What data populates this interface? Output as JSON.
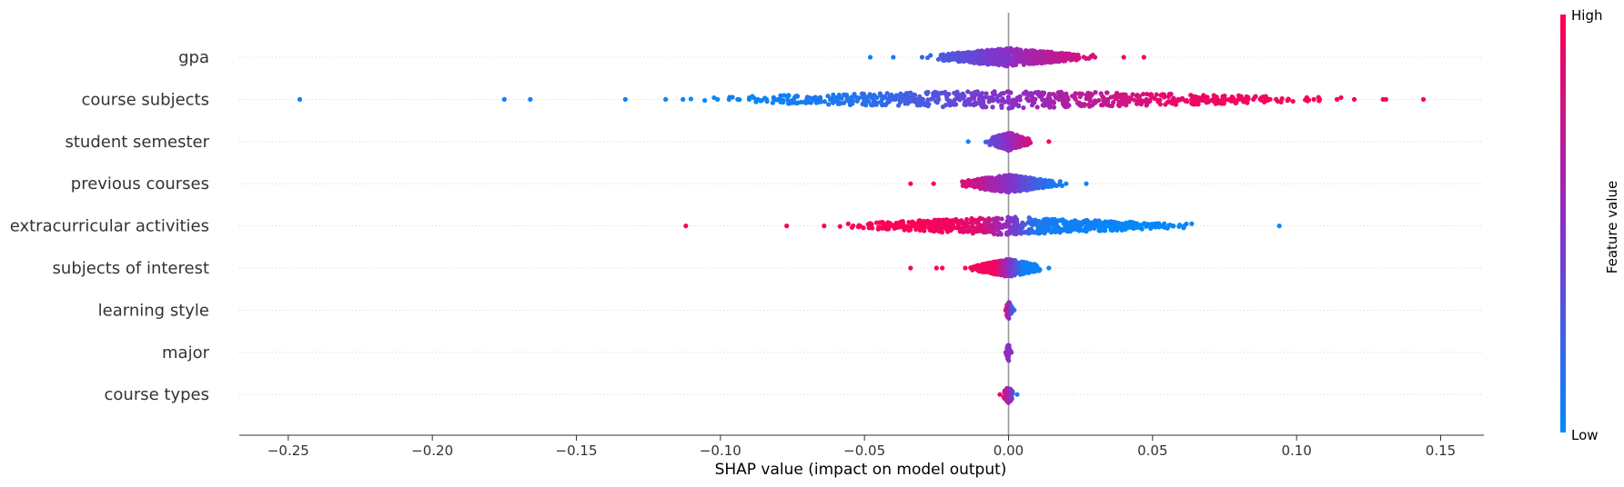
{
  "chart_data": {
    "type": "scatter",
    "subtype": "shap-beeswarm-summary",
    "xlabel": "SHAP value (impact on model output)",
    "xlim": [
      -0.267,
      0.165
    ],
    "xticks": [
      -0.25,
      -0.2,
      -0.15,
      -0.1,
      -0.05,
      0.0,
      0.05,
      0.1,
      0.15
    ],
    "xtick_labels": [
      "−0.25",
      "−0.20",
      "−0.15",
      "−0.10",
      "−0.05",
      "0.00",
      "0.05",
      "0.10",
      "0.15"
    ],
    "features": [
      "gpa",
      "course subjects",
      "student semester",
      "previous courses",
      "extracurricular activities",
      "subjects of interest",
      "learning style",
      "major",
      "course types"
    ],
    "colorbar": {
      "label": "Feature value",
      "high_label": "High",
      "low_label": "Low",
      "high_color": "#ff0052",
      "mid_color": "#8a2fc8",
      "low_color": "#008bfb"
    },
    "series": [
      {
        "feature": "gpa",
        "range": [
          -0.048,
          0.047
        ],
        "trend": "positive",
        "sample_points": [
          {
            "x": -0.048,
            "v": 0.05
          },
          {
            "x": -0.04,
            "v": 0.1
          },
          {
            "x": -0.03,
            "v": 0.2
          },
          {
            "x": -0.02,
            "v": 0.3
          },
          {
            "x": -0.01,
            "v": 0.4
          },
          {
            "x": 0.0,
            "v": 0.5
          },
          {
            "x": 0.01,
            "v": 0.65
          },
          {
            "x": 0.02,
            "v": 0.75
          },
          {
            "x": 0.03,
            "v": 0.85
          },
          {
            "x": 0.04,
            "v": 0.9
          },
          {
            "x": 0.047,
            "v": 0.95
          }
        ]
      },
      {
        "feature": "course subjects",
        "range": [
          -0.246,
          0.144
        ],
        "trend": "positive",
        "sample_points": [
          {
            "x": -0.246,
            "v": 0.02
          },
          {
            "x": -0.175,
            "v": 0.05
          },
          {
            "x": -0.166,
            "v": 0.05
          },
          {
            "x": -0.133,
            "v": 0.05
          },
          {
            "x": -0.119,
            "v": 0.05
          },
          {
            "x": -0.113,
            "v": 0.05
          },
          {
            "x": -0.101,
            "v": 0.05
          },
          {
            "x": -0.097,
            "v": 0.05
          },
          {
            "x": -0.094,
            "v": 0.05
          },
          {
            "x": -0.09,
            "v": 0.05
          },
          {
            "x": -0.087,
            "v": 0.05
          },
          {
            "x": -0.084,
            "v": 0.05
          },
          {
            "x": -0.08,
            "v": 0.05
          },
          {
            "x": -0.07,
            "v": 0.08
          },
          {
            "x": -0.06,
            "v": 0.1
          },
          {
            "x": -0.04,
            "v": 0.2
          },
          {
            "x": 0.0,
            "v": 0.5
          },
          {
            "x": 0.04,
            "v": 0.8
          },
          {
            "x": 0.06,
            "v": 0.92
          },
          {
            "x": 0.078,
            "v": 0.95
          },
          {
            "x": 0.085,
            "v": 0.95
          },
          {
            "x": 0.106,
            "v": 0.98
          },
          {
            "x": 0.108,
            "v": 0.98
          },
          {
            "x": 0.114,
            "v": 0.98
          },
          {
            "x": 0.12,
            "v": 0.98
          },
          {
            "x": 0.13,
            "v": 0.98
          },
          {
            "x": 0.131,
            "v": 0.98
          },
          {
            "x": 0.144,
            "v": 0.98
          }
        ]
      },
      {
        "feature": "student semester",
        "range": [
          -0.014,
          0.014
        ],
        "trend": "positive",
        "sample_points": [
          {
            "x": -0.014,
            "v": 0.05
          },
          {
            "x": -0.007,
            "v": 0.3
          },
          {
            "x": 0.0,
            "v": 0.55
          },
          {
            "x": 0.007,
            "v": 0.8
          },
          {
            "x": 0.014,
            "v": 0.98
          }
        ]
      },
      {
        "feature": "previous courses",
        "range": [
          -0.034,
          0.027
        ],
        "trend": "negative",
        "sample_points": [
          {
            "x": -0.034,
            "v": 0.98
          },
          {
            "x": -0.026,
            "v": 0.95
          },
          {
            "x": -0.015,
            "v": 0.85
          },
          {
            "x": -0.005,
            "v": 0.6
          },
          {
            "x": 0.0,
            "v": 0.5
          },
          {
            "x": 0.01,
            "v": 0.2
          },
          {
            "x": 0.02,
            "v": 0.05
          },
          {
            "x": 0.027,
            "v": 0.02
          }
        ]
      },
      {
        "feature": "extracurricular activities",
        "range": [
          -0.112,
          0.094
        ],
        "trend": "negative",
        "sample_points": [
          {
            "x": -0.112,
            "v": 0.98
          },
          {
            "x": -0.077,
            "v": 0.98
          },
          {
            "x": -0.064,
            "v": 0.98
          },
          {
            "x": -0.048,
            "v": 0.98
          },
          {
            "x": -0.037,
            "v": 0.98
          },
          {
            "x": -0.033,
            "v": 0.98
          },
          {
            "x": -0.03,
            "v": 0.98
          },
          {
            "x": -0.025,
            "v": 0.95
          },
          {
            "x": -0.02,
            "v": 0.95
          },
          {
            "x": -0.01,
            "v": 0.85
          },
          {
            "x": 0.0,
            "v": 0.5
          },
          {
            "x": 0.01,
            "v": 0.1
          },
          {
            "x": 0.02,
            "v": 0.05
          },
          {
            "x": 0.03,
            "v": 0.05
          },
          {
            "x": 0.044,
            "v": 0.02
          },
          {
            "x": 0.049,
            "v": 0.02
          },
          {
            "x": 0.053,
            "v": 0.02
          },
          {
            "x": 0.057,
            "v": 0.02
          },
          {
            "x": 0.061,
            "v": 0.02
          },
          {
            "x": 0.094,
            "v": 0.02
          }
        ]
      },
      {
        "feature": "subjects of interest",
        "range": [
          -0.034,
          0.014
        ],
        "trend": "negative",
        "sample_points": [
          {
            "x": -0.034,
            "v": 0.98
          },
          {
            "x": -0.025,
            "v": 0.98
          },
          {
            "x": -0.023,
            "v": 0.98
          },
          {
            "x": -0.015,
            "v": 0.98
          },
          {
            "x": -0.01,
            "v": 0.95
          },
          {
            "x": -0.005,
            "v": 0.95
          },
          {
            "x": 0.0,
            "v": 0.5
          },
          {
            "x": 0.005,
            "v": 0.05
          },
          {
            "x": 0.01,
            "v": 0.05
          },
          {
            "x": 0.014,
            "v": 0.02
          }
        ]
      },
      {
        "feature": "learning style",
        "range": [
          -0.001,
          0.002
        ],
        "trend": "mixed",
        "sample_points": [
          {
            "x": -0.001,
            "v": 0.95
          },
          {
            "x": 0.0,
            "v": 0.5
          },
          {
            "x": 0.002,
            "v": 0.05
          }
        ]
      },
      {
        "feature": "major",
        "range": [
          -0.001,
          0.001
        ],
        "trend": "mixed",
        "sample_points": [
          {
            "x": -0.001,
            "v": 0.6
          },
          {
            "x": 0.0,
            "v": 0.5
          },
          {
            "x": 0.001,
            "v": 0.55
          }
        ]
      },
      {
        "feature": "course types",
        "range": [
          -0.003,
          0.003
        ],
        "trend": "mixed",
        "sample_points": [
          {
            "x": -0.003,
            "v": 0.95
          },
          {
            "x": 0.0,
            "v": 0.6
          },
          {
            "x": 0.003,
            "v": 0.05
          }
        ]
      }
    ],
    "grid": false,
    "zero_line": true
  }
}
